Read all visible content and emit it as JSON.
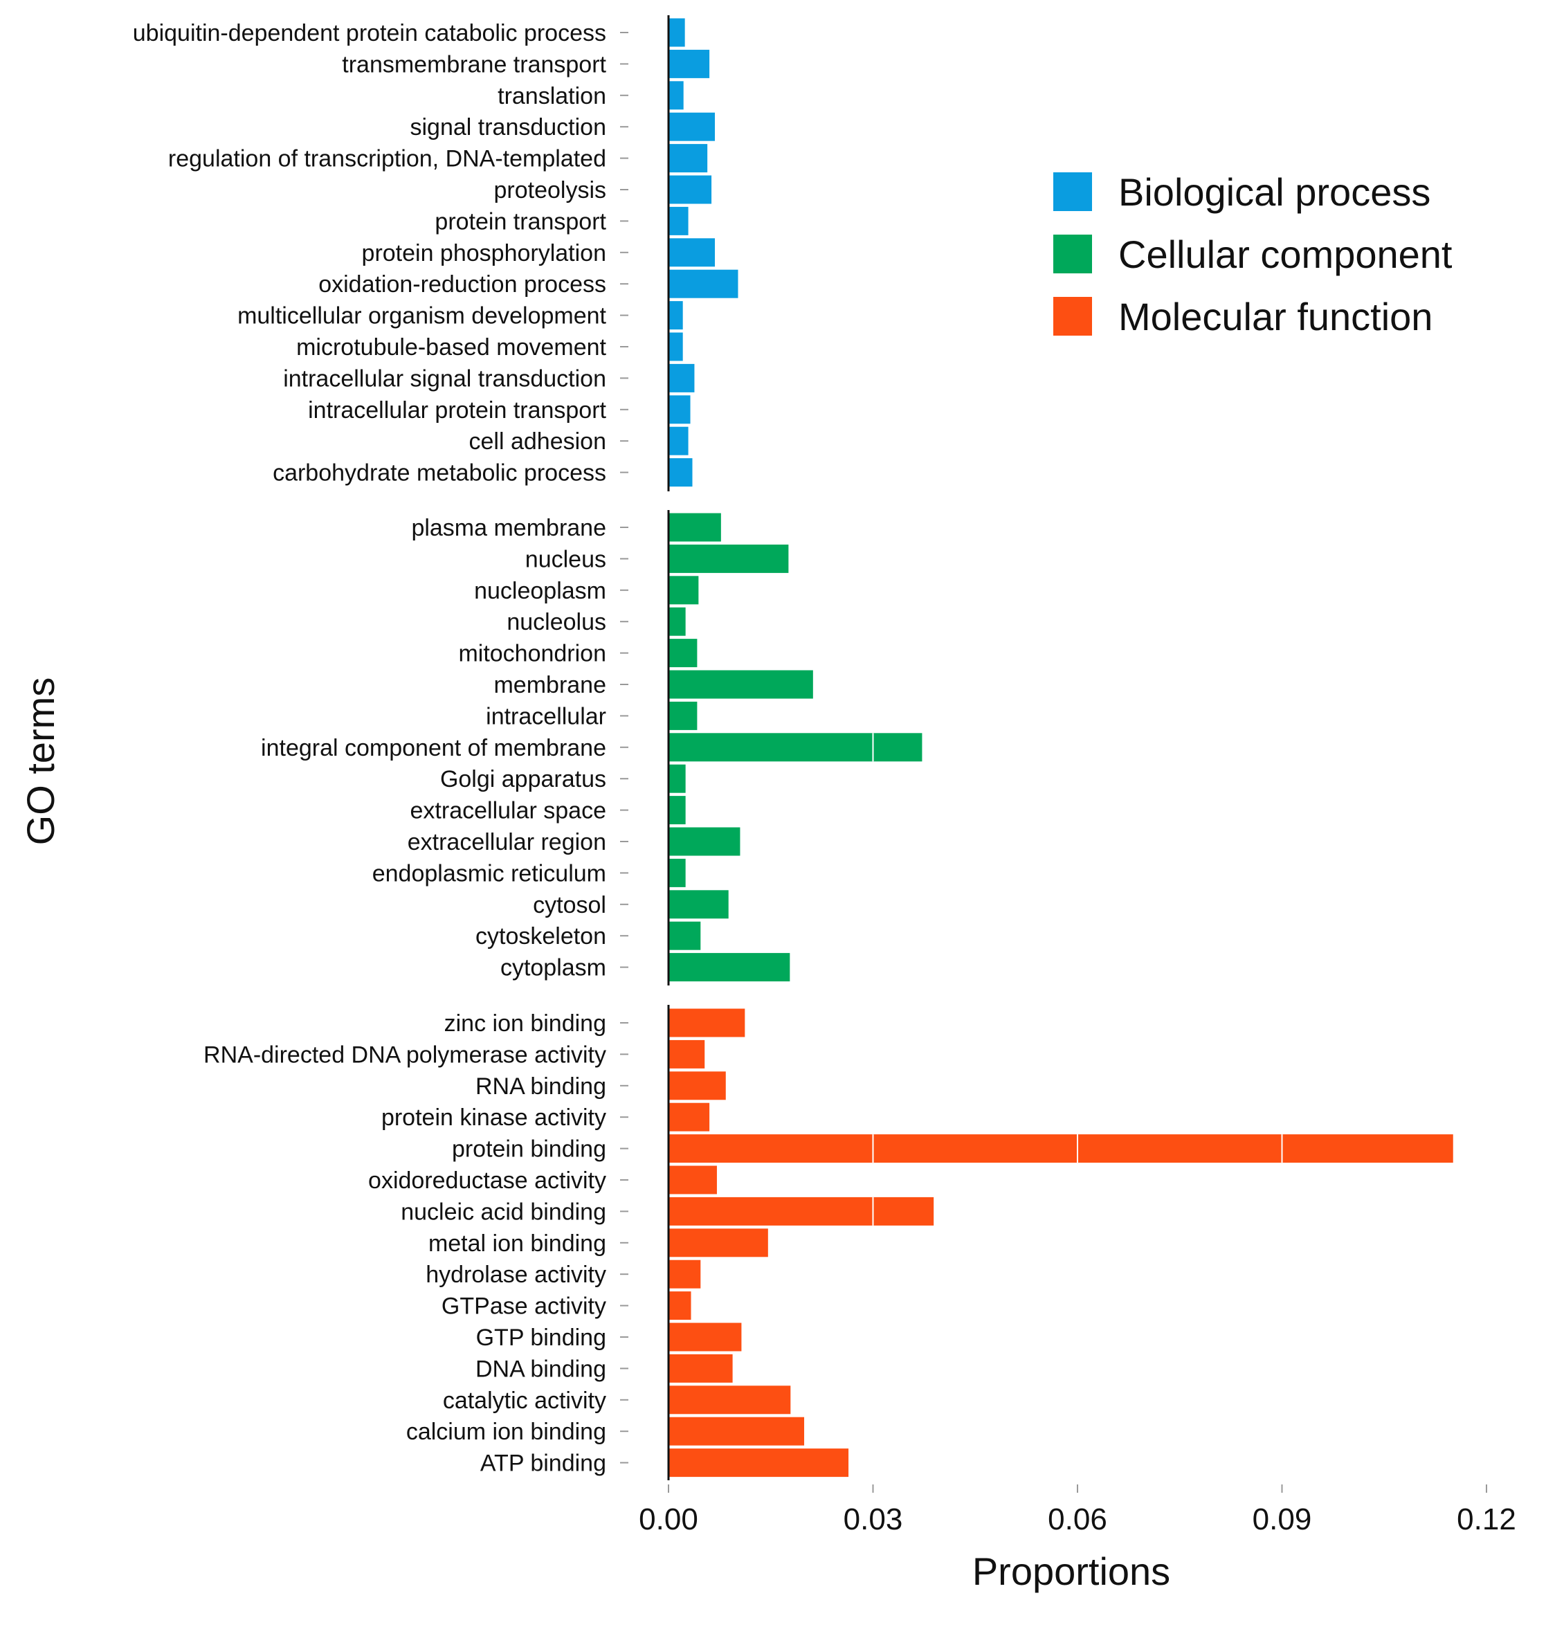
{
  "chart_data": {
    "type": "bar",
    "orientation": "horizontal",
    "xlabel": "Proportions",
    "ylabel": "GO terms",
    "xlim": [
      0,
      0.12
    ],
    "xticks": [
      "0.00",
      "0.03",
      "0.06",
      "0.09",
      "0.12"
    ],
    "xtick_values": [
      0,
      0.03,
      0.06,
      0.09,
      0.12
    ],
    "grid": false,
    "legend_position": "top-right",
    "legend": [
      {
        "name": "Biological process",
        "color": "#0a9de0"
      },
      {
        "name": "Cellular component",
        "color": "#00a85a"
      },
      {
        "name": "Molecular function",
        "color": "#fd4f12"
      }
    ],
    "groups": [
      {
        "name": "Biological process",
        "color": "#0a9de0",
        "categories": [
          "ubiquitin-dependent protein catabolic process",
          "transmembrane transport",
          "translation",
          "signal transduction",
          "regulation of transcription, DNA-templated",
          "proteolysis",
          "protein transport",
          "protein phosphorylation",
          "oxidation-reduction process",
          "multicellular organism development",
          "microtubule-based movement",
          "intracellular signal transduction",
          "intracellular protein transport",
          "cell adhesion",
          "carbohydrate metabolic process"
        ],
        "values": [
          0.0023,
          0.0059,
          0.0021,
          0.0067,
          0.0056,
          0.0062,
          0.0028,
          0.0067,
          0.0101,
          0.002,
          0.002,
          0.0037,
          0.0031,
          0.0028,
          0.0034
        ]
      },
      {
        "name": "Cellular component",
        "color": "#00a85a",
        "categories": [
          "plasma membrane",
          "nucleus",
          "nucleoplasm",
          "nucleolus",
          "mitochondrion",
          "membrane",
          "intracellular",
          "integral component of membrane",
          "Golgi apparatus",
          "extracellular space",
          "extracellular region",
          "endoplasmic reticulum",
          "cytosol",
          "cytoskeleton",
          "cytoplasm"
        ],
        "values": [
          0.0076,
          0.0175,
          0.0043,
          0.0024,
          0.0041,
          0.0211,
          0.0041,
          0.0371,
          0.0024,
          0.0024,
          0.0104,
          0.0024,
          0.0087,
          0.0046,
          0.0177
        ]
      },
      {
        "name": "Molecular function",
        "color": "#fd4f12",
        "categories": [
          "zinc ion binding",
          "RNA-directed DNA polymerase activity",
          "RNA binding",
          "protein kinase activity",
          "protein binding",
          "oxidoreductase activity",
          "nucleic acid binding",
          "metal ion binding",
          "hydrolase activity",
          "GTPase activity",
          "GTP binding",
          "DNA binding",
          "catalytic activity",
          "calcium ion binding",
          "ATP binding"
        ],
        "values": [
          0.0111,
          0.0052,
          0.0083,
          0.0059,
          0.115,
          0.007,
          0.0388,
          0.0145,
          0.0046,
          0.0032,
          0.0106,
          0.0093,
          0.0178,
          0.0198,
          0.0263
        ]
      }
    ]
  }
}
